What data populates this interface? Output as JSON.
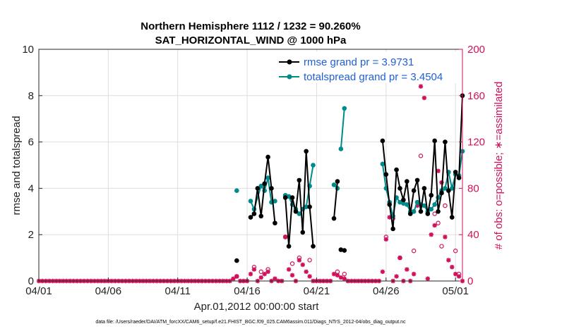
{
  "chart_data": {
    "type": "line",
    "title_line1": "Northern Hemisphere 1112 / 1232 = 90.260%",
    "title_line2": "SAT_HORIZONTAL_WIND @ 1000 hPa",
    "xlabel": "Apr.01,2012 00:00:00 start",
    "ylabel_left": "rmse and totalspread",
    "ylabel_right": "# of obs: o=possible; ∗=assimilated",
    "xlim": [
      0,
      30.5
    ],
    "ylim_left": [
      0,
      10
    ],
    "ylim_right": [
      0,
      200
    ],
    "x_ticks": [
      0,
      5,
      10,
      15,
      20,
      25,
      30
    ],
    "x_tick_labels": [
      "04/01",
      "04/06",
      "04/11",
      "04/16",
      "04/21",
      "04/26",
      "05/01"
    ],
    "y_ticks_left": [
      "0",
      "2",
      "4",
      "6",
      "8",
      "10"
    ],
    "y_ticks_right": [
      "0",
      "40",
      "80",
      "120",
      "160",
      "200"
    ],
    "grid": true,
    "legend_position": "top-right",
    "series": [
      {
        "name": "rmse grand pr = 3.9731",
        "color": "#000000",
        "axis": "left",
        "segments": [
          [
            [
              14.25,
              0.88
            ]
          ],
          [
            [
              15.25,
              2.75
            ],
            [
              15.5,
              2.9
            ],
            [
              15.75,
              4.0
            ],
            [
              16.0,
              2.8
            ],
            [
              16.25,
              4.2
            ],
            [
              16.5,
              5.35
            ],
            [
              16.75,
              4.0
            ],
            [
              17.0,
              2.5
            ]
          ],
          [
            [
              17.75,
              3.6
            ],
            [
              18.0,
              1.5
            ],
            [
              18.25,
              3.6
            ],
            [
              18.5,
              3.0
            ],
            [
              18.75,
              4.35
            ],
            [
              19.0,
              2.1
            ],
            [
              19.25,
              5.6
            ],
            [
              19.5,
              3.2
            ],
            [
              19.75,
              1.5
            ]
          ],
          [
            [
              21.25,
              2.7
            ],
            [
              21.5,
              4.3
            ]
          ],
          [
            [
              21.75,
              1.35
            ],
            [
              22.0,
              1.32
            ]
          ],
          [
            [
              24.75,
              6.05
            ],
            [
              25.0,
              4.6
            ],
            [
              25.25,
              3.3
            ],
            [
              25.5,
              2.25
            ],
            [
              25.75,
              4.8
            ],
            [
              26.0,
              4.0
            ],
            [
              26.25,
              3.5
            ],
            [
              26.5,
              4.3
            ],
            [
              26.75,
              2.9
            ],
            [
              27.0,
              3.9
            ],
            [
              27.25,
              4.35
            ],
            [
              27.5,
              3.0
            ],
            [
              27.75,
              4.0
            ],
            [
              28.0,
              2.9
            ],
            [
              28.25,
              3.7
            ],
            [
              28.5,
              6.05
            ],
            [
              28.75,
              3.0
            ],
            [
              29.0,
              3.8
            ],
            [
              29.25,
              6.0
            ],
            [
              29.5,
              3.9
            ],
            [
              29.75,
              2.75
            ],
            [
              30.0,
              4.7
            ],
            [
              30.25,
              4.45
            ],
            [
              30.5,
              8.0
            ]
          ]
        ]
      },
      {
        "name": "totalspread grand pr = 3.4504",
        "color": "#008b8b",
        "axis": "left",
        "segments": [
          [
            [
              14.25,
              3.9
            ]
          ],
          [
            [
              15.25,
              3.45
            ],
            [
              15.5,
              3.1
            ],
            [
              16.0,
              4.1
            ],
            [
              16.25,
              3.9
            ],
            [
              16.5,
              4.45
            ],
            [
              16.75,
              3.4
            ],
            [
              17.0,
              3.45
            ]
          ],
          [
            [
              17.75,
              3.7
            ],
            [
              18.0,
              3.65
            ],
            [
              18.25,
              3.3
            ],
            [
              18.5,
              3.1
            ],
            [
              18.75,
              2.9
            ],
            [
              19.0,
              3.1
            ],
            [
              19.25,
              3.2
            ],
            [
              19.5,
              4.1
            ],
            [
              19.75,
              5.0
            ]
          ],
          [
            [
              21.25,
              4.15
            ],
            [
              21.5,
              4.0
            ]
          ],
          [
            [
              21.75,
              5.7
            ],
            [
              22.0,
              7.45
            ]
          ],
          [
            [
              24.75,
              5.05
            ],
            [
              25.0,
              4.0
            ],
            [
              25.25,
              3.4
            ],
            [
              25.5,
              2.8
            ],
            [
              25.75,
              3.6
            ],
            [
              26.0,
              3.4
            ],
            [
              26.25,
              3.35
            ],
            [
              26.5,
              3.3
            ],
            [
              26.75,
              3.0
            ],
            [
              27.0,
              3.0
            ],
            [
              27.25,
              3.4
            ],
            [
              27.5,
              3.3
            ],
            [
              27.75,
              3.25
            ],
            [
              28.0,
              3.0
            ],
            [
              28.25,
              3.1
            ],
            [
              28.5,
              3.3
            ],
            [
              28.75,
              3.6
            ],
            [
              29.0,
              3.9
            ],
            [
              29.25,
              4.0
            ],
            [
              29.5,
              4.7
            ],
            [
              29.75,
              4.0
            ],
            [
              30.0,
              4.6
            ],
            [
              30.25,
              4.55
            ],
            [
              30.5,
              5.6
            ]
          ]
        ]
      }
    ],
    "obs_possible": {
      "color": "#d0105a",
      "marker": "circle",
      "axis": "right",
      "points": [
        [
          14.25,
          4
        ],
        [
          15.5,
          12
        ],
        [
          16.0,
          8
        ],
        [
          16.5,
          10
        ],
        [
          17.75,
          38
        ],
        [
          18.25,
          15
        ],
        [
          18.75,
          20
        ],
        [
          19.5,
          18
        ],
        [
          21.5,
          8
        ],
        [
          22.0,
          6
        ],
        [
          25.0,
          38
        ],
        [
          25.5,
          54
        ],
        [
          26.0,
          20
        ],
        [
          27.0,
          26
        ],
        [
          27.25,
          68
        ],
        [
          27.5,
          108
        ],
        [
          28.5,
          58
        ],
        [
          28.75,
          50
        ],
        [
          29.0,
          30
        ],
        [
          29.25,
          65
        ],
        [
          30.0,
          26
        ],
        [
          30.25,
          6
        ]
      ]
    },
    "obs_assimilated": {
      "color": "#d0105a",
      "marker": "asterisk",
      "axis": "right",
      "points": [
        [
          0.0,
          0
        ],
        [
          0.25,
          0
        ],
        [
          0.5,
          0
        ],
        [
          0.75,
          0
        ],
        [
          1.0,
          0
        ],
        [
          1.25,
          0
        ],
        [
          1.5,
          0
        ],
        [
          1.75,
          0
        ],
        [
          2.0,
          0
        ],
        [
          2.25,
          0
        ],
        [
          2.5,
          0
        ],
        [
          2.75,
          0
        ],
        [
          3.0,
          0
        ],
        [
          3.25,
          0
        ],
        [
          3.5,
          0
        ],
        [
          3.75,
          0
        ],
        [
          4.0,
          0
        ],
        [
          4.25,
          0
        ],
        [
          4.5,
          0
        ],
        [
          4.75,
          0
        ],
        [
          5.0,
          0
        ],
        [
          5.25,
          0
        ],
        [
          5.5,
          0
        ],
        [
          5.75,
          0
        ],
        [
          6.0,
          0
        ],
        [
          6.25,
          0
        ],
        [
          6.5,
          0
        ],
        [
          6.75,
          0
        ],
        [
          7.0,
          0
        ],
        [
          7.25,
          0
        ],
        [
          7.5,
          0
        ],
        [
          7.75,
          0
        ],
        [
          8.0,
          0
        ],
        [
          8.25,
          0
        ],
        [
          8.5,
          0
        ],
        [
          8.75,
          0
        ],
        [
          9.0,
          0
        ],
        [
          9.25,
          0
        ],
        [
          9.5,
          0
        ],
        [
          9.75,
          0
        ],
        [
          10.0,
          0
        ],
        [
          10.25,
          0
        ],
        [
          10.5,
          0
        ],
        [
          10.75,
          0
        ],
        [
          11.0,
          0
        ],
        [
          11.25,
          0
        ],
        [
          11.5,
          0
        ],
        [
          11.75,
          0
        ],
        [
          12.0,
          0
        ],
        [
          12.25,
          0
        ],
        [
          12.5,
          0
        ],
        [
          12.75,
          0
        ],
        [
          13.0,
          0
        ],
        [
          13.25,
          0
        ],
        [
          13.5,
          0
        ],
        [
          13.75,
          0
        ],
        [
          14.0,
          2
        ],
        [
          14.25,
          4
        ],
        [
          14.5,
          0
        ],
        [
          14.75,
          0
        ],
        [
          15.0,
          0
        ],
        [
          15.25,
          6
        ],
        [
          15.5,
          10
        ],
        [
          15.75,
          0
        ],
        [
          16.0,
          3
        ],
        [
          16.25,
          6
        ],
        [
          16.5,
          8
        ],
        [
          16.75,
          0
        ],
        [
          17.0,
          2
        ],
        [
          17.25,
          0
        ],
        [
          17.5,
          0
        ],
        [
          17.75,
          38
        ],
        [
          18.0,
          10
        ],
        [
          18.25,
          5
        ],
        [
          18.5,
          0
        ],
        [
          18.75,
          18
        ],
        [
          19.0,
          14
        ],
        [
          19.25,
          8
        ],
        [
          19.5,
          4
        ],
        [
          19.75,
          0
        ],
        [
          20.0,
          0
        ],
        [
          20.25,
          0
        ],
        [
          20.5,
          0
        ],
        [
          20.75,
          0
        ],
        [
          21.0,
          0
        ],
        [
          21.25,
          6
        ],
        [
          21.5,
          5
        ],
        [
          21.75,
          3
        ],
        [
          22.0,
          2
        ],
        [
          22.25,
          0
        ],
        [
          22.5,
          0
        ],
        [
          22.75,
          0
        ],
        [
          23.0,
          0
        ],
        [
          23.25,
          0
        ],
        [
          23.5,
          0
        ],
        [
          23.75,
          0
        ],
        [
          24.0,
          0
        ],
        [
          24.25,
          0
        ],
        [
          24.5,
          0
        ],
        [
          24.75,
          8
        ],
        [
          25.0,
          36
        ],
        [
          25.25,
          55
        ],
        [
          25.5,
          0
        ],
        [
          25.75,
          4
        ],
        [
          26.0,
          20
        ],
        [
          26.25,
          0
        ],
        [
          26.5,
          10
        ],
        [
          26.75,
          0
        ],
        [
          27.0,
          6
        ],
        [
          27.25,
          65
        ],
        [
          27.5,
          168
        ],
        [
          27.75,
          158
        ],
        [
          28.0,
          2
        ],
        [
          28.25,
          40
        ],
        [
          28.5,
          48
        ],
        [
          28.75,
          95
        ],
        [
          29.0,
          85
        ],
        [
          29.25,
          38
        ],
        [
          29.5,
          18
        ],
        [
          29.75,
          12
        ],
        [
          30.0,
          6
        ],
        [
          30.25,
          4
        ],
        [
          30.5,
          0
        ]
      ]
    },
    "footnote": "data file: /Users/raeder/DAI/ATM_forcXX/CAM6_setup/f.e21.FHIST_BGC.f09_025.CAM6assim.011/Diags_NTrS_2012-04/obs_diag_output.nc"
  }
}
